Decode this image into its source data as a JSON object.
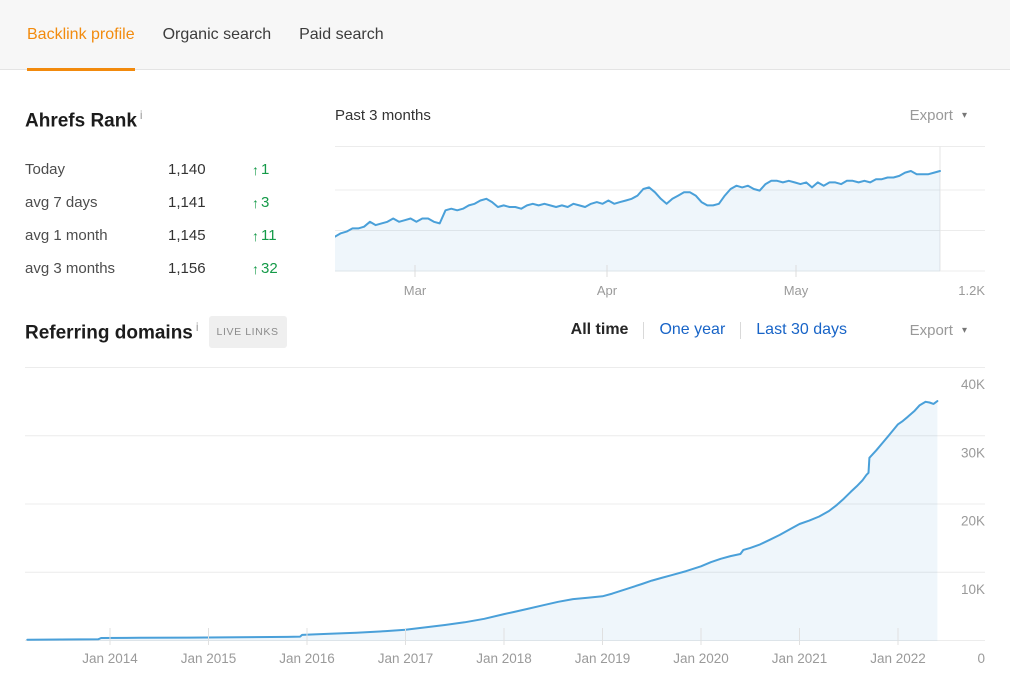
{
  "tabs": {
    "items": [
      {
        "label": "Backlink profile",
        "active": true
      },
      {
        "label": "Organic search",
        "active": false
      },
      {
        "label": "Paid search",
        "active": false
      }
    ]
  },
  "ui": {
    "info_icon": "i",
    "caret": "▾",
    "up_arrow": "↑"
  },
  "colors": {
    "accent_orange": "#f28b0e",
    "link_blue": "#1864c7",
    "positive_green": "#149a48",
    "chart_line": "#4aa0d9",
    "chart_fill": "rgba(77,160,215,0.09)",
    "grid": "#ececec",
    "axis_text": "#9a9a9a"
  },
  "ahrefs_rank": {
    "title": "Ahrefs Rank",
    "rows": [
      {
        "label": "Today",
        "value": "1,140",
        "delta": "1"
      },
      {
        "label": "avg 7 days",
        "value": "1,141",
        "delta": "3"
      },
      {
        "label": "avg 1 month",
        "value": "1,145",
        "delta": "11"
      },
      {
        "label": "avg 3 months",
        "value": "1,156",
        "delta": "32"
      }
    ]
  },
  "rank_chart": {
    "title": "Past 3 months",
    "export_label": "Export",
    "x_ticks": [
      "Mar",
      "Apr",
      "May"
    ],
    "bottom_right_axis_label": "1.2K"
  },
  "referring_domains": {
    "title": "Referring domains",
    "badge": "LIVE LINKS",
    "filters": [
      {
        "label": "All time",
        "active": true
      },
      {
        "label": "One year",
        "active": false
      },
      {
        "label": "Last 30 days",
        "active": false
      }
    ],
    "export_label": "Export",
    "y_tick_labels": [
      "0",
      "10K",
      "20K",
      "30K",
      "40K"
    ],
    "x_tick_labels": [
      "Jan 2014",
      "Jan 2015",
      "Jan 2016",
      "Jan 2017",
      "Jan 2018",
      "Jan 2019",
      "Jan 2020",
      "Jan 2021",
      "Jan 2022"
    ]
  },
  "chart_data": [
    {
      "type": "area",
      "title": "Ahrefs Rank — Past 3 months",
      "x_ticks": [
        "Mar",
        "Apr",
        "May"
      ],
      "y_axis": {
        "inverted": true,
        "unit": "rank",
        "plot_top_value": 1125,
        "plot_bottom_value": 1200,
        "bottom_label": "1.2K"
      },
      "legend": "none",
      "values": [
        1179,
        1177,
        1176,
        1174,
        1174,
        1173,
        1170,
        1172,
        1171,
        1170,
        1168,
        1170,
        1169,
        1168,
        1170,
        1168,
        1168,
        1170,
        1171,
        1163,
        1162,
        1163,
        1162,
        1160,
        1159,
        1157,
        1156,
        1158,
        1161,
        1160,
        1161,
        1161,
        1162,
        1160,
        1159,
        1160,
        1159,
        1160,
        1161,
        1160,
        1161,
        1159,
        1160,
        1161,
        1159,
        1158,
        1159,
        1157,
        1159,
        1158,
        1157,
        1156,
        1154,
        1150,
        1149,
        1152,
        1156,
        1159,
        1156,
        1154,
        1152,
        1152,
        1154,
        1158,
        1160,
        1160,
        1159,
        1154,
        1150,
        1148,
        1149,
        1148,
        1150,
        1151,
        1147,
        1145,
        1145,
        1146,
        1145,
        1146,
        1147,
        1146,
        1149,
        1146,
        1148,
        1146,
        1146,
        1147,
        1145,
        1145,
        1146,
        1145,
        1146,
        1144,
        1144,
        1143,
        1143,
        1142,
        1140,
        1139,
        1141,
        1141,
        1141,
        1140,
        1139
      ]
    },
    {
      "type": "area",
      "title": "Referring domains — All time",
      "unit": "thousands of referring domains",
      "ylim": [
        0,
        40
      ],
      "y_tick_values": [
        0,
        10,
        20,
        30,
        40
      ],
      "x_tick_years": [
        2014,
        2015,
        2016,
        2017,
        2018,
        2019,
        2020,
        2021,
        2022
      ],
      "legend": "none",
      "points": [
        [
          2013.16,
          0.05
        ],
        [
          2013.5,
          0.08
        ],
        [
          2013.88,
          0.1
        ],
        [
          2013.91,
          0.3
        ],
        [
          2014.3,
          0.32
        ],
        [
          2014.8,
          0.35
        ],
        [
          2015.3,
          0.4
        ],
        [
          2015.8,
          0.45
        ],
        [
          2015.93,
          0.5
        ],
        [
          2015.95,
          0.75
        ],
        [
          2016.2,
          0.9
        ],
        [
          2016.5,
          1.05
        ],
        [
          2016.8,
          1.3
        ],
        [
          2017.0,
          1.5
        ],
        [
          2017.2,
          1.85
        ],
        [
          2017.4,
          2.2
        ],
        [
          2017.6,
          2.6
        ],
        [
          2017.8,
          3.1
        ],
        [
          2018.0,
          3.8
        ],
        [
          2018.1,
          4.1
        ],
        [
          2018.25,
          4.6
        ],
        [
          2018.4,
          5.1
        ],
        [
          2018.55,
          5.6
        ],
        [
          2018.7,
          6.0
        ],
        [
          2018.85,
          6.2
        ],
        [
          2019.0,
          6.4
        ],
        [
          2019.1,
          6.8
        ],
        [
          2019.25,
          7.5
        ],
        [
          2019.4,
          8.2
        ],
        [
          2019.5,
          8.7
        ],
        [
          2019.6,
          9.1
        ],
        [
          2019.7,
          9.5
        ],
        [
          2019.85,
          10.1
        ],
        [
          2020.0,
          10.8
        ],
        [
          2020.1,
          11.4
        ],
        [
          2020.2,
          11.9
        ],
        [
          2020.3,
          12.3
        ],
        [
          2020.4,
          12.6
        ],
        [
          2020.43,
          13.2
        ],
        [
          2020.5,
          13.5
        ],
        [
          2020.6,
          14.0
        ],
        [
          2020.7,
          14.7
        ],
        [
          2020.8,
          15.4
        ],
        [
          2020.9,
          16.2
        ],
        [
          2021.0,
          17.0
        ],
        [
          2021.1,
          17.5
        ],
        [
          2021.2,
          18.1
        ],
        [
          2021.3,
          18.9
        ],
        [
          2021.38,
          19.8
        ],
        [
          2021.45,
          20.7
        ],
        [
          2021.52,
          21.7
        ],
        [
          2021.58,
          22.5
        ],
        [
          2021.64,
          23.4
        ],
        [
          2021.68,
          24.2
        ],
        [
          2021.7,
          24.5
        ],
        [
          2021.71,
          26.7
        ],
        [
          2021.78,
          27.8
        ],
        [
          2021.85,
          29.0
        ],
        [
          2021.92,
          30.2
        ],
        [
          2022.0,
          31.6
        ],
        [
          2022.05,
          32.1
        ],
        [
          2022.1,
          32.7
        ],
        [
          2022.17,
          33.6
        ],
        [
          2022.22,
          34.4
        ],
        [
          2022.28,
          34.9
        ],
        [
          2022.32,
          34.8
        ],
        [
          2022.36,
          34.6
        ],
        [
          2022.4,
          35.0
        ]
      ]
    }
  ]
}
